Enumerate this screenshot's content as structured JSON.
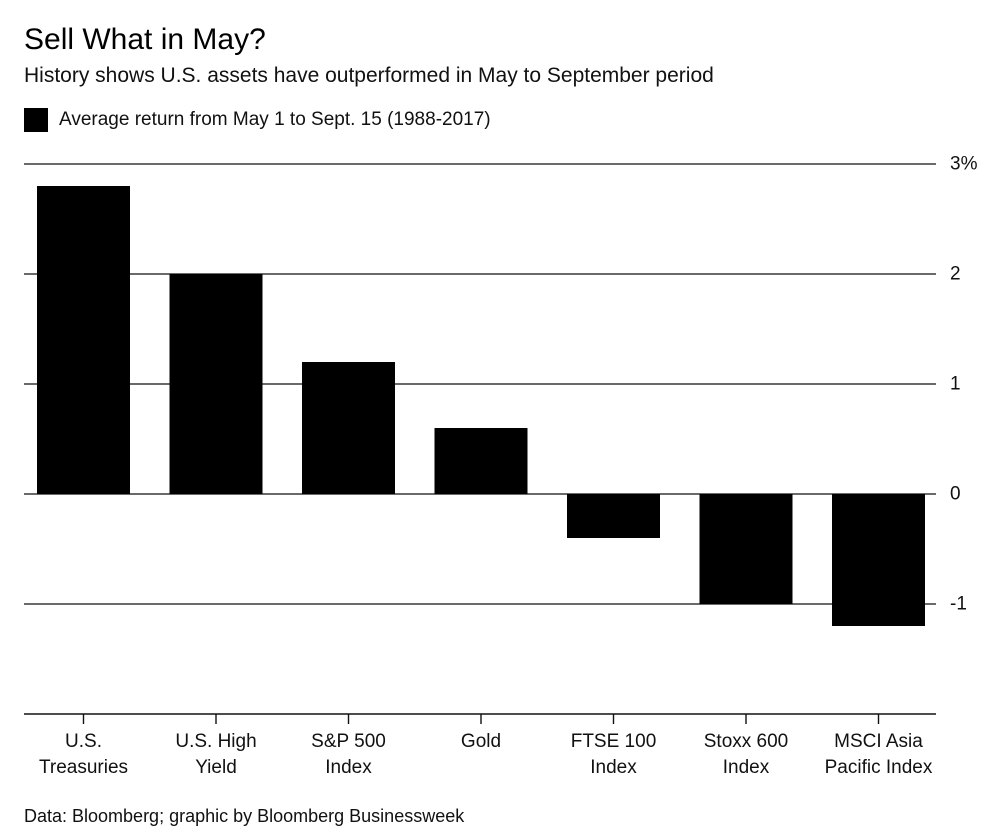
{
  "title": "Sell What in May?",
  "subtitle": "History shows U.S. assets have outperformed in May to September period",
  "source": "Data: Bloomberg; graphic by Bloomberg Businessweek",
  "chart_data": {
    "type": "bar",
    "categories": [
      [
        "U.S.",
        "Treasuries"
      ],
      [
        "U.S. High",
        "Yield"
      ],
      [
        "S&P 500",
        "Index"
      ],
      [
        "Gold"
      ],
      [
        "FTSE 100",
        "Index"
      ],
      [
        "Stoxx 600",
        "Index"
      ],
      [
        "MSCI Asia",
        "Pacific Index"
      ]
    ],
    "series": [
      {
        "name": "Average return from May 1 to Sept. 15 (1988-2017)",
        "values": [
          2.8,
          2.0,
          1.2,
          0.6,
          -0.4,
          -1.0,
          -1.2
        ],
        "color": "#000000"
      }
    ],
    "yticks": [
      3,
      2,
      1,
      0,
      -1
    ],
    "ytick_labels": [
      "3%",
      "2",
      "1",
      "0",
      "-1"
    ],
    "ylim": [
      -2,
      3
    ],
    "ytick_position": "right",
    "grid": true,
    "legend_position": "top-left"
  }
}
